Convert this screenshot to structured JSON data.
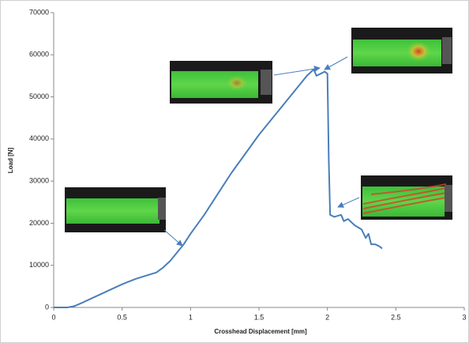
{
  "chart_data": {
    "type": "line",
    "x_label": "Crosshead Displacement [mm]",
    "y_label": "Load [N]",
    "x": [
      0,
      0.1,
      0.15,
      0.2,
      0.3,
      0.4,
      0.5,
      0.6,
      0.7,
      0.75,
      0.8,
      0.85,
      0.9,
      0.95,
      1.0,
      1.1,
      1.2,
      1.3,
      1.4,
      1.5,
      1.6,
      1.7,
      1.8,
      1.85,
      1.9,
      1.92,
      1.95,
      1.98,
      2.0,
      2.01,
      2.02,
      2.05,
      2.1,
      2.12,
      2.15,
      2.2,
      2.25,
      2.28,
      2.3,
      2.32,
      2.35,
      2.38,
      2.4
    ],
    "values": [
      0,
      0,
      300,
      1000,
      2500,
      4000,
      5500,
      6800,
      7800,
      8300,
      9500,
      11000,
      13000,
      15000,
      17500,
      22000,
      27000,
      32000,
      36500,
      41000,
      45000,
      49000,
      53000,
      55000,
      56500,
      55000,
      55500,
      56000,
      55500,
      35000,
      22000,
      21500,
      22000,
      20500,
      21000,
      19500,
      18500,
      16500,
      17500,
      15000,
      15000,
      14500,
      14000
    ],
    "color": "#4a7ebb",
    "xlim": [
      0,
      3
    ],
    "xticks": [
      0,
      0.5,
      1,
      1.5,
      2,
      2.5,
      3
    ],
    "ylim": [
      0,
      70000
    ],
    "yticks": [
      0,
      10000,
      20000,
      30000,
      40000,
      50000,
      60000,
      70000
    ]
  }
}
